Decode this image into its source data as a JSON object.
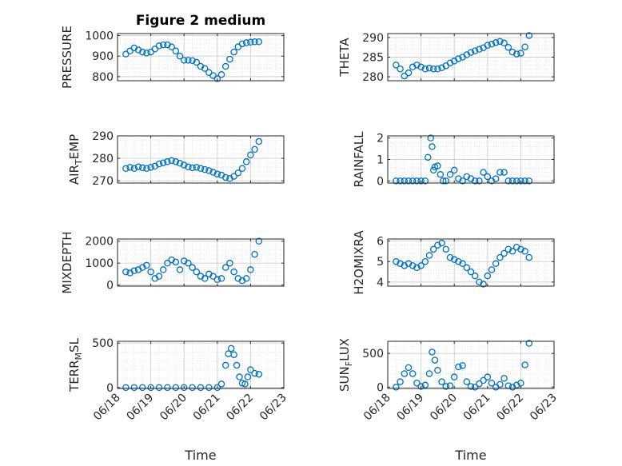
{
  "chart_data": [
    {
      "type": "scatter",
      "title": "Figure 2 medium",
      "ylabel": "PRESSURE",
      "ylim": [
        780,
        1010
      ],
      "yticks": [
        800,
        900,
        1000
      ],
      "xlim": [
        "06/18",
        "06/23"
      ],
      "xticks": [
        "06/18",
        "06/19",
        "06/20",
        "06/21",
        "06/22",
        "06/23"
      ],
      "show_xticklabels": false,
      "grid": true,
      "x": [
        "06/18 06:00",
        "06/18 09:00",
        "06/18 12:00",
        "06/18 15:00",
        "06/18 18:00",
        "06/18 21:00",
        "06/19 00:00",
        "06/19 03:00",
        "06/19 06:00",
        "06/19 09:00",
        "06/19 12:00",
        "06/19 15:00",
        "06/19 18:00",
        "06/19 21:00",
        "06/20 00:00",
        "06/20 03:00",
        "06/20 06:00",
        "06/20 09:00",
        "06/20 12:00",
        "06/20 15:00",
        "06/20 18:00",
        "06/20 21:00",
        "06/21 00:00",
        "06/21 03:00",
        "06/21 06:00",
        "06/21 09:00",
        "06/21 12:00",
        "06/21 15:00",
        "06/21 18:00",
        "06/21 21:00",
        "06/22 00:00",
        "06/22 03:00",
        "06/22 06:00"
      ],
      "y": [
        910,
        925,
        940,
        930,
        920,
        915,
        920,
        935,
        950,
        955,
        955,
        945,
        925,
        900,
        880,
        880,
        878,
        870,
        850,
        840,
        820,
        805,
        790,
        810,
        850,
        885,
        920,
        945,
        960,
        965,
        968,
        970,
        970
      ]
    },
    {
      "type": "scatter",
      "ylabel": "THETA",
      "ylim": [
        279,
        291
      ],
      "yticks": [
        280,
        285,
        290
      ],
      "xlim": [
        "06/18",
        "06/23"
      ],
      "xticks": [
        "06/18",
        "06/19",
        "06/20",
        "06/21",
        "06/22",
        "06/23"
      ],
      "show_xticklabels": false,
      "grid": true,
      "x": [
        "06/18 06:00",
        "06/18 09:00",
        "06/18 12:00",
        "06/18 15:00",
        "06/18 18:00",
        "06/18 21:00",
        "06/19 00:00",
        "06/19 03:00",
        "06/19 06:00",
        "06/19 09:00",
        "06/19 12:00",
        "06/19 15:00",
        "06/19 18:00",
        "06/19 21:00",
        "06/20 00:00",
        "06/20 03:00",
        "06/20 06:00",
        "06/20 09:00",
        "06/20 12:00",
        "06/20 15:00",
        "06/20 18:00",
        "06/20 21:00",
        "06/21 00:00",
        "06/21 03:00",
        "06/21 06:00",
        "06/21 09:00",
        "06/21 12:00",
        "06/21 15:00",
        "06/21 18:00",
        "06/21 21:00",
        "06/22 00:00",
        "06/22 03:00",
        "06/22 06:00"
      ],
      "y": [
        283,
        282,
        280.2,
        281,
        282.5,
        283,
        282.5,
        282,
        282.2,
        282,
        282,
        282.3,
        282.8,
        283.5,
        284,
        284.6,
        285,
        285.6,
        286.2,
        286.6,
        287,
        287.4,
        288,
        288.3,
        288.7,
        289,
        288.6,
        287.5,
        286.3,
        285.8,
        286,
        287.6,
        290.5
      ]
    },
    {
      "type": "scatter",
      "ylabel": "AIR_TEMP",
      "ylim": [
        269,
        290
      ],
      "yticks": [
        270,
        280,
        290
      ],
      "xlim": [
        "06/18",
        "06/23"
      ],
      "xticks": [
        "06/18",
        "06/19",
        "06/20",
        "06/21",
        "06/22",
        "06/23"
      ],
      "show_xticklabels": false,
      "grid": true,
      "x": [
        "06/18 06:00",
        "06/18 09:00",
        "06/18 12:00",
        "06/18 15:00",
        "06/18 18:00",
        "06/18 21:00",
        "06/19 00:00",
        "06/19 03:00",
        "06/19 06:00",
        "06/19 09:00",
        "06/19 12:00",
        "06/19 15:00",
        "06/19 18:00",
        "06/19 21:00",
        "06/20 00:00",
        "06/20 03:00",
        "06/20 06:00",
        "06/20 09:00",
        "06/20 12:00",
        "06/20 15:00",
        "06/20 18:00",
        "06/20 21:00",
        "06/21 00:00",
        "06/21 03:00",
        "06/21 06:00",
        "06/21 09:00",
        "06/21 12:00",
        "06/21 15:00",
        "06/21 18:00",
        "06/21 21:00",
        "06/22 00:00",
        "06/22 03:00",
        "06/22 06:00"
      ],
      "y": [
        275.5,
        276,
        275.5,
        276.2,
        275.8,
        275.5,
        276,
        276.5,
        277.5,
        278,
        278.5,
        279,
        278.5,
        277.8,
        277,
        276.2,
        275.8,
        276,
        275.5,
        275,
        274.5,
        273.8,
        273,
        272.5,
        271.5,
        271,
        272,
        273.5,
        275.5,
        278.5,
        281.5,
        284,
        287.5
      ]
    },
    {
      "type": "scatter",
      "ylabel": "RAINFALL",
      "ylim": [
        -0.1,
        2.1
      ],
      "yticks": [
        0,
        1,
        2
      ],
      "xlim": [
        "06/18",
        "06/23"
      ],
      "xticks": [
        "06/18",
        "06/19",
        "06/20",
        "06/21",
        "06/22",
        "06/23"
      ],
      "show_xticklabels": false,
      "grid": true,
      "x": [
        "06/18 06:00",
        "06/18 09:00",
        "06/18 12:00",
        "06/18 15:00",
        "06/18 18:00",
        "06/18 21:00",
        "06/19 00:00",
        "06/19 03:00",
        "06/19 05:00",
        "06/19 07:00",
        "06/19 08:00",
        "06/19 09:00",
        "06/19 10:00",
        "06/19 12:00",
        "06/19 14:00",
        "06/19 16:00",
        "06/19 18:00",
        "06/19 21:00",
        "06/20 00:00",
        "06/20 03:00",
        "06/20 06:00",
        "06/20 09:00",
        "06/20 12:00",
        "06/20 15:00",
        "06/20 18:00",
        "06/20 21:00",
        "06/21 00:00",
        "06/21 03:00",
        "06/21 06:00",
        "06/21 09:00",
        "06/21 12:00",
        "06/21 15:00",
        "06/21 18:00",
        "06/21 21:00",
        "06/22 00:00",
        "06/22 03:00",
        "06/22 06:00"
      ],
      "y": [
        0,
        0,
        0,
        0,
        0,
        0,
        0,
        0,
        1.1,
        2.0,
        1.6,
        0.5,
        0.65,
        0.7,
        0.3,
        0,
        0,
        0.3,
        0.5,
        0.1,
        0,
        0.2,
        0.1,
        0,
        0,
        0.4,
        0.2,
        0,
        0.1,
        0.4,
        0.4,
        0,
        0,
        0,
        0,
        0,
        0
      ]
    },
    {
      "type": "scatter",
      "ylabel": "MIXDEPTH",
      "ylim": [
        -50,
        2100
      ],
      "yticks": [
        0,
        1000,
        2000
      ],
      "xlim": [
        "06/18",
        "06/23"
      ],
      "xticks": [
        "06/18",
        "06/19",
        "06/20",
        "06/21",
        "06/22",
        "06/23"
      ],
      "show_xticklabels": false,
      "grid": true,
      "x": [
        "06/18 06:00",
        "06/18 09:00",
        "06/18 12:00",
        "06/18 15:00",
        "06/18 18:00",
        "06/18 21:00",
        "06/19 00:00",
        "06/19 03:00",
        "06/19 06:00",
        "06/19 09:00",
        "06/19 12:00",
        "06/19 15:00",
        "06/19 18:00",
        "06/19 21:00",
        "06/20 00:00",
        "06/20 03:00",
        "06/20 06:00",
        "06/20 09:00",
        "06/20 12:00",
        "06/20 15:00",
        "06/20 18:00",
        "06/20 21:00",
        "06/21 00:00",
        "06/21 03:00",
        "06/21 06:00",
        "06/21 09:00",
        "06/21 12:00",
        "06/21 15:00",
        "06/21 18:00",
        "06/21 21:00",
        "06/22 00:00",
        "06/22 03:00",
        "06/22 06:00"
      ],
      "y": [
        600,
        550,
        650,
        700,
        800,
        900,
        600,
        300,
        400,
        700,
        1000,
        1150,
        1050,
        700,
        1100,
        1000,
        800,
        600,
        400,
        300,
        500,
        400,
        250,
        300,
        800,
        1000,
        600,
        300,
        200,
        300,
        700,
        1400,
        2000
      ]
    },
    {
      "type": "scatter",
      "ylabel": "H2OMIXRA",
      "ylim": [
        3.8,
        6.1
      ],
      "yticks": [
        4,
        5,
        6
      ],
      "xlim": [
        "06/18",
        "06/23"
      ],
      "xticks": [
        "06/18",
        "06/19",
        "06/20",
        "06/21",
        "06/22",
        "06/23"
      ],
      "show_xticklabels": false,
      "grid": true,
      "x": [
        "06/18 06:00",
        "06/18 09:00",
        "06/18 12:00",
        "06/18 15:00",
        "06/18 18:00",
        "06/18 21:00",
        "06/19 00:00",
        "06/19 03:00",
        "06/19 06:00",
        "06/19 09:00",
        "06/19 12:00",
        "06/19 15:00",
        "06/19 18:00",
        "06/19 21:00",
        "06/20 00:00",
        "06/20 03:00",
        "06/20 06:00",
        "06/20 09:00",
        "06/20 12:00",
        "06/20 15:00",
        "06/20 18:00",
        "06/20 21:00",
        "06/21 00:00",
        "06/21 03:00",
        "06/21 06:00",
        "06/21 09:00",
        "06/21 12:00",
        "06/21 15:00",
        "06/21 18:00",
        "06/21 21:00",
        "06/22 00:00",
        "06/22 03:00",
        "06/22 06:00"
      ],
      "y": [
        5.0,
        4.9,
        4.8,
        4.9,
        4.8,
        4.7,
        4.8,
        5.0,
        5.3,
        5.6,
        5.8,
        5.9,
        5.6,
        5.2,
        5.1,
        5.0,
        4.9,
        4.7,
        4.5,
        4.3,
        4.0,
        3.9,
        4.3,
        4.6,
        4.9,
        5.2,
        5.4,
        5.6,
        5.5,
        5.7,
        5.6,
        5.5,
        5.2
      ]
    },
    {
      "type": "scatter",
      "ylabel": "TERR_MSL",
      "ylim": [
        -10,
        520
      ],
      "yticks": [
        0,
        500
      ],
      "xlim": [
        "06/18",
        "06/23"
      ],
      "xticks": [
        "06/18",
        "06/19",
        "06/20",
        "06/21",
        "06/22",
        "06/23"
      ],
      "show_xticklabels": true,
      "xlabel": "Time",
      "grid": true,
      "x": [
        "06/18 06:00",
        "06/18 12:00",
        "06/18 18:00",
        "06/19 00:00",
        "06/19 06:00",
        "06/19 12:00",
        "06/19 18:00",
        "06/20 00:00",
        "06/20 06:00",
        "06/20 12:00",
        "06/20 18:00",
        "06/21 00:00",
        "06/21 03:00",
        "06/21 06:00",
        "06/21 08:00",
        "06/21 10:00",
        "06/21 12:00",
        "06/21 14:00",
        "06/21 16:00",
        "06/21 18:00",
        "06/21 20:00",
        "06/21 22:00",
        "06/22 00:00",
        "06/22 03:00",
        "06/22 06:00"
      ],
      "y": [
        0,
        0,
        0,
        0,
        0,
        0,
        0,
        0,
        0,
        0,
        0,
        0,
        40,
        250,
        380,
        440,
        370,
        250,
        120,
        50,
        40,
        120,
        200,
        160,
        150
      ]
    },
    {
      "type": "scatter",
      "ylabel": "SUN_FLUX",
      "ylim": [
        -20,
        680
      ],
      "yticks": [
        0,
        500
      ],
      "xlim": [
        "06/18",
        "06/23"
      ],
      "xticks": [
        "06/18",
        "06/19",
        "06/20",
        "06/21",
        "06/22",
        "06/23"
      ],
      "show_xticklabels": true,
      "xlabel": "Time",
      "grid": true,
      "x": [
        "06/18 06:00",
        "06/18 09:00",
        "06/18 12:00",
        "06/18 15:00",
        "06/18 18:00",
        "06/18 21:00",
        "06/19 00:00",
        "06/19 03:00",
        "06/19 06:00",
        "06/19 08:00",
        "06/19 10:00",
        "06/19 12:00",
        "06/19 15:00",
        "06/19 18:00",
        "06/19 21:00",
        "06/20 00:00",
        "06/20 03:00",
        "06/20 06:00",
        "06/20 09:00",
        "06/20 12:00",
        "06/20 15:00",
        "06/20 18:00",
        "06/20 21:00",
        "06/21 00:00",
        "06/21 03:00",
        "06/21 06:00",
        "06/21 09:00",
        "06/21 12:00",
        "06/21 15:00",
        "06/21 18:00",
        "06/21 21:00",
        "06/22 00:00",
        "06/22 03:00",
        "06/22 06:00"
      ],
      "y": [
        0,
        80,
        200,
        290,
        200,
        60,
        10,
        30,
        200,
        520,
        400,
        250,
        80,
        10,
        20,
        150,
        300,
        320,
        80,
        10,
        0,
        50,
        100,
        150,
        60,
        0,
        40,
        130,
        20,
        0,
        30,
        60,
        330,
        650
      ]
    }
  ],
  "style": {
    "marker_color": "#0072bd",
    "axis_color": "#262626",
    "grid_color": "#dfdfdf"
  }
}
